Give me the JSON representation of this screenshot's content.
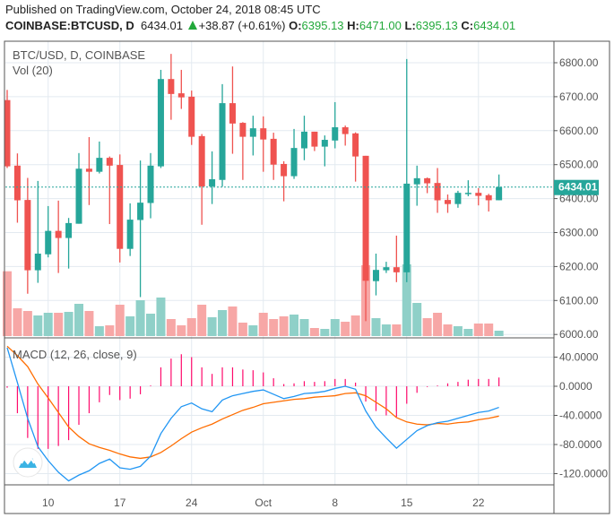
{
  "header": {
    "published": "Published on TradingView.com, October 24, 2018 08:45 UTC",
    "symbol": "COINBASE:BTCUSD, D",
    "last": "6434.01",
    "change": "+38.87 (+0.61%)",
    "o_label": "O:",
    "o": "6395.13",
    "h_label": "H:",
    "h": "6471.00",
    "l_label": "L:",
    "l": "6395.13",
    "c_label": "C:",
    "c": "6434.01"
  },
  "colors": {
    "up": "#26a69a",
    "down": "#ef5350",
    "vol_up": "#8fd0c8",
    "vol_down": "#f7a7a6",
    "macd": "#2196f3",
    "signal": "#ff6d00",
    "hist": "#ff0a6c",
    "grid": "#e3eaf0",
    "change_up": "#22a83a"
  },
  "chart_data": [
    {
      "type": "candlestick",
      "title": "BTC/USD, D, COINBASE",
      "volume_label": "Vol (20)",
      "x_tick_labels": [
        {
          "date": "Sep 10",
          "label": "10"
        },
        {
          "date": "Sep 17",
          "label": "17"
        },
        {
          "date": "Sep 24",
          "label": "24"
        },
        {
          "date": "Oct 1",
          "label": "Oct"
        },
        {
          "date": "Oct 8",
          "label": "8"
        },
        {
          "date": "Oct 15",
          "label": "15"
        },
        {
          "date": "Oct 22",
          "label": "22"
        }
      ],
      "y_ticks": [
        "6000.00",
        "6100.00",
        "6200.00",
        "6300.00",
        "6400.00",
        "6500.00",
        "6600.00",
        "6700.00",
        "6800.00"
      ],
      "ylim": [
        6000,
        6830
      ],
      "last_price_label": "6434.01",
      "last_price": 6434.01,
      "grid": true,
      "dates": [
        "Sep 6",
        "Sep 7",
        "Sep 8",
        "Sep 9",
        "Sep 10",
        "Sep 11",
        "Sep 12",
        "Sep 13",
        "Sep 14",
        "Sep 15",
        "Sep 16",
        "Sep 17",
        "Sep 18",
        "Sep 19",
        "Sep 20",
        "Sep 21",
        "Sep 22",
        "Sep 23",
        "Sep 24",
        "Sep 25",
        "Sep 26",
        "Sep 27",
        "Sep 28",
        "Sep 29",
        "Sep 30",
        "Oct 1",
        "Oct 2",
        "Oct 3",
        "Oct 4",
        "Oct 5",
        "Oct 6",
        "Oct 7",
        "Oct 8",
        "Oct 9",
        "Oct 10",
        "Oct 11",
        "Oct 12",
        "Oct 13",
        "Oct 14",
        "Oct 15",
        "Oct 16",
        "Oct 17",
        "Oct 18",
        "Oct 19",
        "Oct 20",
        "Oct 21",
        "Oct 22",
        "Oct 23",
        "Oct 24"
      ],
      "ohlc": [
        [
          6690,
          6720,
          6490,
          6495
        ],
        [
          6497,
          6533,
          6329,
          6395
        ],
        [
          6396,
          6461,
          6120,
          6189
        ],
        [
          6189,
          6452,
          6152,
          6238
        ],
        [
          6236,
          6378,
          6227,
          6305
        ],
        [
          6305,
          6394,
          6181,
          6284
        ],
        [
          6284,
          6343,
          6194,
          6328
        ],
        [
          6326,
          6534,
          6326,
          6488
        ],
        [
          6488,
          6581,
          6381,
          6479
        ],
        [
          6479,
          6568,
          6474,
          6520
        ],
        [
          6520,
          6524,
          6325,
          6497
        ],
        [
          6499,
          6530,
          6212,
          6252
        ],
        [
          6252,
          6386,
          6231,
          6338
        ],
        [
          6337,
          6512,
          6110,
          6388
        ],
        [
          6387,
          6534,
          6342,
          6497
        ],
        [
          6495,
          6779,
          6490,
          6752
        ],
        [
          6752,
          6826,
          6632,
          6708
        ],
        [
          6710,
          6779,
          6664,
          6698
        ],
        [
          6700,
          6718,
          6558,
          6582
        ],
        [
          6584,
          6590,
          6323,
          6436
        ],
        [
          6436,
          6539,
          6384,
          6457
        ],
        [
          6455,
          6737,
          6435,
          6681
        ],
        [
          6681,
          6789,
          6532,
          6621
        ],
        [
          6623,
          6625,
          6455,
          6582
        ],
        [
          6582,
          6644,
          6527,
          6607
        ],
        [
          6607,
          6642,
          6479,
          6574
        ],
        [
          6576,
          6594,
          6455,
          6500
        ],
        [
          6502,
          6510,
          6392,
          6466
        ],
        [
          6466,
          6605,
          6458,
          6549
        ],
        [
          6548,
          6644,
          6513,
          6597
        ],
        [
          6597,
          6597,
          6540,
          6553
        ],
        [
          6553,
          6586,
          6495,
          6573
        ],
        [
          6571,
          6684,
          6548,
          6610
        ],
        [
          6610,
          6615,
          6556,
          6590
        ],
        [
          6592,
          6595,
          6450,
          6524
        ],
        [
          6526,
          6526,
          6039,
          6158
        ],
        [
          6157,
          6238,
          6115,
          6190
        ],
        [
          6189,
          6214,
          6181,
          6198
        ],
        [
          6198,
          6291,
          6154,
          6183
        ],
        [
          6183,
          6811,
          6154,
          6444
        ],
        [
          6442,
          6497,
          6379,
          6460
        ],
        [
          6460,
          6462,
          6416,
          6445
        ],
        [
          6446,
          6490,
          6358,
          6395
        ],
        [
          6396,
          6412,
          6358,
          6384
        ],
        [
          6384,
          6423,
          6373,
          6417
        ],
        [
          6415,
          6454,
          6407,
          6417
        ],
        [
          6417,
          6431,
          6380,
          6408
        ],
        [
          6410,
          6414,
          6362,
          6395.13
        ],
        [
          6395.13,
          6471,
          6395.13,
          6434.01
        ]
      ],
      "volume_relative": [
        217,
        93,
        84,
        69,
        78,
        78,
        81,
        108,
        84,
        33,
        36,
        105,
        66,
        120,
        75,
        129,
        57,
        36,
        60,
        105,
        63,
        87,
        99,
        45,
        36,
        78,
        57,
        66,
        72,
        57,
        27,
        24,
        57,
        48,
        69,
        237,
        60,
        39,
        39,
        240,
        111,
        60,
        78,
        39,
        33,
        24,
        42,
        42,
        18
      ]
    },
    {
      "type": "line",
      "title": "MACD (12, 26, close, 9)",
      "y_ticks": [
        "40.0000",
        "0.0000",
        "-40.0000",
        "-80.0000",
        "-120.0000"
      ],
      "ylim": [
        -140,
        60
      ],
      "series": [
        {
          "key": "macd",
          "values": [
            53,
            5,
            -44,
            -83,
            -102,
            -118,
            -130,
            -122,
            -116,
            -106,
            -100,
            -112,
            -114,
            -110,
            -96,
            -65,
            -44,
            -28,
            -23,
            -31,
            -35,
            -19,
            -13,
            -10,
            -7,
            -5,
            -11,
            -17,
            -14,
            -10,
            -9,
            -7,
            -3,
            0,
            -4,
            -34,
            -56,
            -71,
            -85,
            -73,
            -61,
            -54,
            -50,
            -48,
            -44,
            -40,
            -36,
            -34,
            -29
          ]
        },
        {
          "key": "signal",
          "values": [
            55,
            42,
            27,
            3,
            -16,
            -36,
            -56,
            -69,
            -79,
            -84,
            -88,
            -93,
            -97,
            -99,
            -97,
            -91,
            -82,
            -72,
            -63,
            -57,
            -52,
            -45,
            -39,
            -33,
            -29,
            -24,
            -22,
            -20,
            -18,
            -17,
            -15,
            -14,
            -13,
            -10,
            -9,
            -13,
            -22,
            -31,
            -43,
            -49,
            -52,
            -53,
            -51,
            -52,
            -50,
            -49,
            -46,
            -44,
            -41
          ]
        },
        {
          "key": "histogram",
          "values": [
            -2,
            -37,
            -71,
            -86,
            -86,
            -82,
            -74,
            -53,
            -37,
            -22,
            -12,
            -19,
            -17,
            -11,
            1,
            26,
            38,
            44,
            40,
            26,
            17,
            26,
            26,
            23,
            22,
            19,
            11,
            3,
            4,
            7,
            6,
            7,
            10,
            10,
            5,
            -21,
            -34,
            -40,
            -42,
            -24,
            -9,
            -1,
            1,
            4,
            6,
            9,
            10,
            10,
            12
          ]
        }
      ]
    }
  ]
}
